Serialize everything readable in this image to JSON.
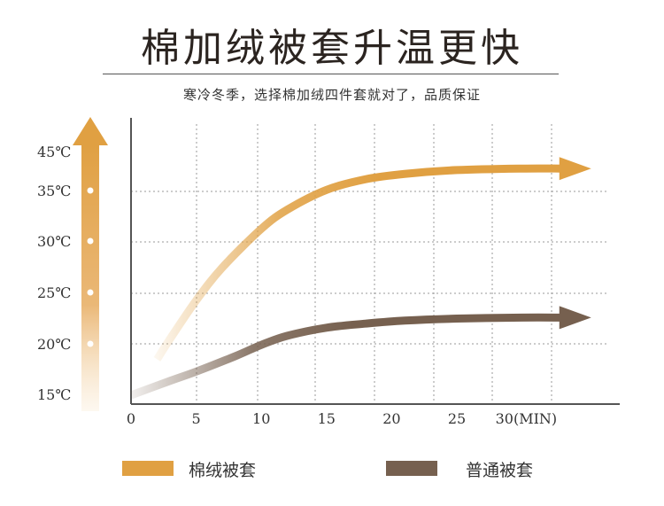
{
  "title": "棉加绒被套升温更快",
  "subtitle": "寒冷冬季，选择棉加绒四件套就对了，品质保证",
  "chart_data": {
    "type": "line",
    "xlabel": "",
    "ylabel": "",
    "x_ticks": [
      "0",
      "5",
      "10",
      "15",
      "20",
      "25",
      "30(MIN)"
    ],
    "x_tick_values": [
      0,
      5,
      10,
      15,
      20,
      25,
      30
    ],
    "y_ticks": [
      "15℃",
      "20℃",
      "25℃",
      "30℃",
      "35℃",
      "45℃"
    ],
    "xlim": [
      0,
      37.5
    ],
    "grid": true,
    "legend_position": "bottom",
    "series": [
      {
        "name": "棉绒被套",
        "color": "#e0a042",
        "x": [
          2,
          3,
          5,
          7,
          10,
          12,
          15,
          18,
          21,
          25,
          30,
          33
        ],
        "y": [
          18.5,
          20.5,
          24.3,
          27.5,
          31.3,
          33.2,
          35.2,
          36.6,
          37.3,
          37.8,
          38.0,
          38.0
        ]
      },
      {
        "name": "普通被套",
        "color": "#76604f",
        "x": [
          0,
          3,
          5,
          8,
          10,
          12,
          15,
          18,
          21,
          25,
          30,
          33
        ],
        "y": [
          15.0,
          16.4,
          17.3,
          18.8,
          19.9,
          20.8,
          21.6,
          22.0,
          22.3,
          22.5,
          22.6,
          22.6
        ]
      }
    ]
  }
}
